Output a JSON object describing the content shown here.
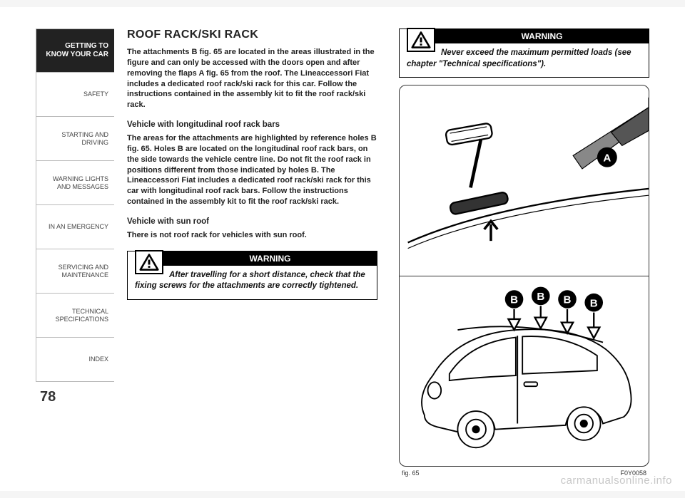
{
  "sidebar": {
    "tabs": [
      {
        "label": "GETTING TO\nKNOW YOUR CAR",
        "active": true
      },
      {
        "label": "SAFETY",
        "active": false
      },
      {
        "label": "STARTING AND\nDRIVING",
        "active": false
      },
      {
        "label": "WARNING LIGHTS\nAND MESSAGES",
        "active": false
      },
      {
        "label": "IN AN EMERGENCY",
        "active": false
      },
      {
        "label": "SERVICING AND\nMAINTENANCE",
        "active": false
      },
      {
        "label": "TECHNICAL\nSPECIFICATIONS",
        "active": false
      },
      {
        "label": "INDEX",
        "active": false
      }
    ]
  },
  "page_number": "78",
  "title": "ROOF RACK/SKI RACK",
  "para1": "The attachments B fig. 65 are located in the areas illustrated in the figure and can only be accessed with the doors open and after removing the flaps A fig. 65 from the roof. The Lineaccessori Fiat includes a dedicated roof rack/ski rack for this car. Follow the instructions contained in the assembly kit to fit the roof rack/ski rack.",
  "subhead1": "Vehicle with longitudinal roof rack bars",
  "para2": "The areas for the attachments are highlighted by reference holes B fig. 65. Holes B are located on the longitudinal roof rack bars, on the side towards the vehicle centre line. Do not fit the roof rack in positions different from those indicated by holes B. The Lineaccessori Fiat includes a dedicated roof rack/ski rack for this car with longitudinal roof rack bars. Follow the instructions contained in the assembly kit to fit the roof rack/ski rack.",
  "subhead2": "Vehicle with sun roof",
  "para3": "There is not roof rack for vehicles with sun roof.",
  "warning1": {
    "title": "WARNING",
    "body": "After travelling for a short distance, check that the fixing screws for the attachments are correctly tightened."
  },
  "warning2": {
    "title": "WARNING",
    "body": "Never exceed the maximum permitted loads (see chapter \"Technical specifications\")."
  },
  "figure": {
    "caption_left": "fig. 65",
    "caption_right": "F0Y0058",
    "marker_a": "A",
    "marker_b": "B"
  },
  "watermark": "carmanualsonline.info",
  "colors": {
    "page_bg": "#ffffff",
    "text": "#222222",
    "tab_border": "#bbbbbb",
    "tab_active_bg": "#222222",
    "tab_active_fg": "#ffffff",
    "warning_bg": "#000000",
    "warning_fg": "#ffffff",
    "fig_border": "#333333"
  }
}
